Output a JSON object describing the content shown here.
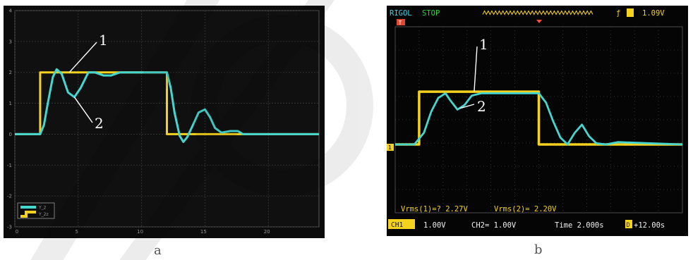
{
  "chart_data": [
    {
      "type": "line",
      "panel": "a",
      "caption": "a",
      "title": "",
      "xlabel": "",
      "ylabel": "",
      "xlim": [
        0,
        24
      ],
      "ylim": [
        -3,
        4
      ],
      "x_ticks": [
        "0",
        "5",
        "10",
        "15",
        "20"
      ],
      "y_ticks": [
        "-3",
        "-2",
        "-1",
        "0",
        "1",
        "2",
        "3",
        "4"
      ],
      "grid": true,
      "legend": "bottom-left",
      "legend_entries": [
        "Y_2",
        "Y_2z"
      ],
      "callouts": [
        "1",
        "2"
      ],
      "series": [
        {
          "name": "Y_2z",
          "color": "#f5d21e",
          "x": [
            0,
            2,
            2,
            12,
            12,
            24
          ],
          "y": [
            0,
            0,
            2,
            2,
            0,
            0
          ]
        },
        {
          "name": "Y_2",
          "color": "#45d6d0",
          "x": [
            0,
            2,
            2.3,
            2.6,
            3.0,
            3.3,
            3.7,
            4.2,
            4.7,
            5.2,
            5.8,
            6.3,
            7.0,
            7.6,
            8.3,
            9.0,
            10,
            11,
            12,
            12.3,
            12.6,
            13.0,
            13.3,
            13.6,
            14.0,
            14.5,
            15.0,
            15.4,
            15.8,
            16.3,
            17,
            17.6,
            18,
            19,
            24
          ],
          "y": [
            0,
            0,
            0.3,
            1.0,
            1.85,
            2.1,
            1.95,
            1.35,
            1.2,
            1.5,
            2.0,
            2.0,
            1.9,
            1.9,
            2.0,
            2.0,
            2.0,
            2.0,
            2.0,
            1.5,
            0.7,
            -0.05,
            -0.25,
            -0.1,
            0.25,
            0.7,
            0.8,
            0.55,
            0.2,
            0.05,
            0.1,
            0.1,
            0.0,
            0.0,
            0.0
          ]
        }
      ]
    },
    {
      "type": "line",
      "panel": "b",
      "caption": "b",
      "title": "",
      "xlabel": "",
      "ylabel": "",
      "xlim": [
        0,
        12
      ],
      "ylim": [
        -4,
        4
      ],
      "grid": true,
      "callouts": [
        "1",
        "2"
      ],
      "series": [
        {
          "name": "CH1",
          "color": "#f5d21e",
          "x": [
            0,
            1.0,
            1.0,
            6.0,
            6.0,
            12
          ],
          "y": [
            0,
            0,
            2.27,
            2.27,
            0,
            0
          ]
        },
        {
          "name": "CH2",
          "color": "#45d6d0",
          "x": [
            0,
            0.8,
            1.2,
            1.5,
            1.8,
            2.1,
            2.3,
            2.6,
            2.9,
            3.2,
            3.6,
            4.0,
            5.0,
            6.0,
            6.3,
            6.6,
            6.9,
            7.2,
            7.5,
            7.8,
            8.1,
            8.4,
            8.8,
            9.3,
            12
          ],
          "y": [
            0,
            0,
            0.5,
            1.4,
            2.0,
            2.2,
            1.9,
            1.5,
            1.7,
            2.1,
            2.2,
            2.2,
            2.2,
            2.2,
            1.8,
            1.0,
            0.3,
            0.0,
            0.5,
            0.85,
            0.35,
            0.05,
            0.0,
            0.1,
            0.0
          ]
        }
      ]
    }
  ],
  "scope_b": {
    "brand": "RIGOL",
    "state": "STOP",
    "trigger_marker": "T",
    "trigger_level": "1.09V",
    "ch_marker": "1",
    "vrms1": "Vrms(1)=? 2.27V",
    "vrms2": "Vrms(2)= 2.20V",
    "ch1_badge": "CH1",
    "ch1_scale": "1.00V",
    "ch2_scale": "CH2= 1.00V",
    "timebase": "Time 2.000s",
    "offset_badge": "D",
    "offset": "+12.00s"
  },
  "colors": {
    "yellow": "#f5d21e",
    "cyan": "#45d6d0",
    "green": "#2fd43a",
    "scope_bg": "#050505",
    "sim_bg": "#0b0b0b"
  }
}
